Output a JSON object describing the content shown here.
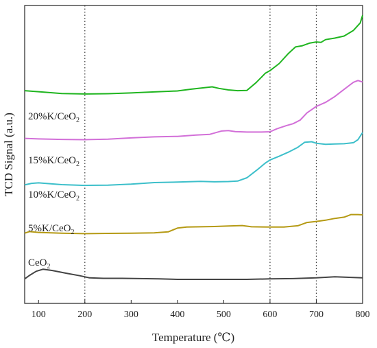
{
  "chart_data": {
    "type": "line",
    "xlabel": "Temperature (℃)",
    "ylabel": "TCD Signal (a.u.)",
    "xlim": [
      70,
      800
    ],
    "xticks": [
      100,
      200,
      300,
      400,
      500,
      600,
      700,
      800
    ],
    "y_ticks_labeled": false,
    "grid": false,
    "reference_lines_x": [
      200,
      600,
      700
    ],
    "series": [
      {
        "name": "20%K/CeO2",
        "label_main": "20%K/CeO",
        "label_sub": "2",
        "color": "#1fb51f",
        "offset": 0.73,
        "points": [
          [
            70,
            0.013
          ],
          [
            100,
            0.009
          ],
          [
            150,
            0.002
          ],
          [
            200,
            0.0
          ],
          [
            250,
            0.001
          ],
          [
            300,
            0.004
          ],
          [
            350,
            0.008
          ],
          [
            400,
            0.012
          ],
          [
            430,
            0.019
          ],
          [
            460,
            0.025
          ],
          [
            475,
            0.028
          ],
          [
            490,
            0.022
          ],
          [
            510,
            0.016
          ],
          [
            530,
            0.013
          ],
          [
            550,
            0.014
          ],
          [
            570,
            0.045
          ],
          [
            590,
            0.082
          ],
          [
            600,
            0.092
          ],
          [
            620,
            0.12
          ],
          [
            640,
            0.16
          ],
          [
            655,
            0.185
          ],
          [
            670,
            0.19
          ],
          [
            685,
            0.2
          ],
          [
            700,
            0.205
          ],
          [
            710,
            0.203
          ],
          [
            720,
            0.214
          ],
          [
            740,
            0.22
          ],
          [
            760,
            0.228
          ],
          [
            780,
            0.25
          ],
          [
            795,
            0.28
          ],
          [
            800,
            0.31
          ]
        ]
      },
      {
        "name": "15%K/CeO2",
        "label_main": "15%K/CeO",
        "label_sub": "2",
        "color": "#d26fd8",
        "offset": 0.55,
        "points": [
          [
            70,
            0.005
          ],
          [
            100,
            0.003
          ],
          [
            150,
            0.001
          ],
          [
            200,
            0.0
          ],
          [
            250,
            0.002
          ],
          [
            300,
            0.007
          ],
          [
            350,
            0.011
          ],
          [
            400,
            0.013
          ],
          [
            440,
            0.018
          ],
          [
            470,
            0.021
          ],
          [
            495,
            0.034
          ],
          [
            510,
            0.036
          ],
          [
            525,
            0.032
          ],
          [
            550,
            0.03
          ],
          [
            580,
            0.03
          ],
          [
            600,
            0.031
          ],
          [
            615,
            0.043
          ],
          [
            635,
            0.055
          ],
          [
            650,
            0.063
          ],
          [
            665,
            0.077
          ],
          [
            680,
            0.106
          ],
          [
            700,
            0.131
          ],
          [
            720,
            0.147
          ],
          [
            740,
            0.17
          ],
          [
            760,
            0.198
          ],
          [
            780,
            0.226
          ],
          [
            790,
            0.233
          ],
          [
            800,
            0.227
          ]
        ]
      },
      {
        "name": "10%K/CeO2",
        "label_main": "10%K/CeO",
        "label_sub": "2",
        "color": "#3cbfca",
        "offset": 0.37,
        "points": [
          [
            70,
            0.002
          ],
          [
            85,
            0.008
          ],
          [
            100,
            0.01
          ],
          [
            150,
            0.003
          ],
          [
            200,
            0.0
          ],
          [
            250,
            0.001
          ],
          [
            300,
            0.005
          ],
          [
            350,
            0.011
          ],
          [
            400,
            0.013
          ],
          [
            450,
            0.016
          ],
          [
            480,
            0.014
          ],
          [
            510,
            0.015
          ],
          [
            530,
            0.017
          ],
          [
            550,
            0.03
          ],
          [
            570,
            0.058
          ],
          [
            590,
            0.088
          ],
          [
            600,
            0.1
          ],
          [
            620,
            0.115
          ],
          [
            640,
            0.131
          ],
          [
            660,
            0.15
          ],
          [
            675,
            0.17
          ],
          [
            690,
            0.172
          ],
          [
            700,
            0.166
          ],
          [
            720,
            0.162
          ],
          [
            740,
            0.163
          ],
          [
            760,
            0.164
          ],
          [
            780,
            0.168
          ],
          [
            790,
            0.18
          ],
          [
            800,
            0.208
          ]
        ]
      },
      {
        "name": "5%K/CeO2",
        "label_main": "5%K/CeO",
        "label_sub": "2",
        "color": "#b59a14",
        "offset": 0.18,
        "points": [
          [
            70,
            0.002
          ],
          [
            80,
            0.008
          ],
          [
            100,
            0.005
          ],
          [
            150,
            0.002
          ],
          [
            200,
            0.0
          ],
          [
            250,
            0.001
          ],
          [
            300,
            0.002
          ],
          [
            350,
            0.003
          ],
          [
            380,
            0.007
          ],
          [
            400,
            0.022
          ],
          [
            420,
            0.026
          ],
          [
            450,
            0.027
          ],
          [
            480,
            0.028
          ],
          [
            510,
            0.03
          ],
          [
            540,
            0.032
          ],
          [
            560,
            0.027
          ],
          [
            600,
            0.026
          ],
          [
            630,
            0.026
          ],
          [
            660,
            0.031
          ],
          [
            680,
            0.044
          ],
          [
            700,
            0.048
          ],
          [
            720,
            0.053
          ],
          [
            740,
            0.06
          ],
          [
            760,
            0.065
          ],
          [
            775,
            0.075
          ],
          [
            790,
            0.075
          ],
          [
            800,
            0.074
          ]
        ]
      },
      {
        "name": "CeO2",
        "label_main": "CeO",
        "label_sub": "2",
        "color": "#444444",
        "offset": 0.0,
        "points": [
          [
            70,
            0.002
          ],
          [
            80,
            0.015
          ],
          [
            95,
            0.032
          ],
          [
            110,
            0.04
          ],
          [
            130,
            0.035
          ],
          [
            160,
            0.024
          ],
          [
            190,
            0.014
          ],
          [
            210,
            0.006
          ],
          [
            240,
            0.004
          ],
          [
            280,
            0.004
          ],
          [
            320,
            0.003
          ],
          [
            360,
            0.002
          ],
          [
            400,
            0.0
          ],
          [
            450,
            0.0
          ],
          [
            500,
            0.0
          ],
          [
            550,
            0.0
          ],
          [
            600,
            0.002
          ],
          [
            650,
            0.003
          ],
          [
            700,
            0.006
          ],
          [
            740,
            0.01
          ],
          [
            760,
            0.009
          ],
          [
            800,
            0.006
          ]
        ]
      }
    ]
  }
}
